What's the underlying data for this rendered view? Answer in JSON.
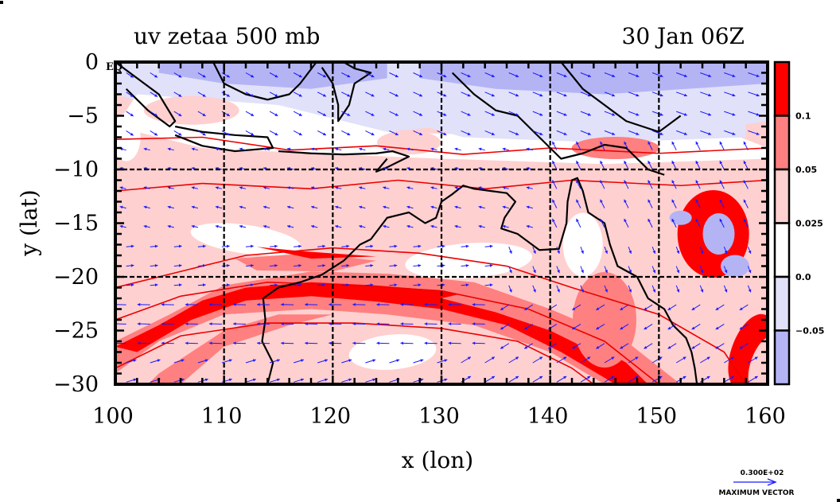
{
  "chart_data": {
    "type": "heatmap",
    "title_left": "uv zetaa 500 mb",
    "title_right": "30 Jan 06Z",
    "xlabel": "x (lon)",
    "ylabel": "y (lat)",
    "xlim": [
      100,
      160
    ],
    "ylim": [
      -30,
      0
    ],
    "x_ticks": [
      100,
      110,
      120,
      130,
      140,
      150,
      160
    ],
    "x_tick_labels": [
      "100",
      "110",
      "120",
      "130",
      "140",
      "150",
      "160"
    ],
    "y_ticks": [
      0,
      -5,
      -10,
      -15,
      -20,
      -25,
      -30
    ],
    "y_tick_labels": [
      "0",
      "−5",
      "−10",
      "−15",
      "−20",
      "−25",
      "−30"
    ],
    "eq_label": "EQ",
    "grid": true,
    "grid_x": [
      110,
      120,
      130,
      140,
      150
    ],
    "grid_y": [
      -10,
      -20
    ],
    "colorbar": {
      "position": "right",
      "levels": [
        -0.05,
        0.0,
        0.025,
        0.05,
        0.1
      ],
      "level_labels": [
        "0.1",
        "0.05",
        "0.025",
        "0.0",
        "−0.05"
      ],
      "colors": [
        "#b4b4f5",
        "#e1e1fa",
        "#ffffff",
        "#ffd0d0",
        "#ff8080",
        "#ff0000"
      ]
    },
    "vector_legend": {
      "value_label": "0.300E+02",
      "caption": "MAXIMUM VECTOR"
    },
    "colors": {
      "vector": "#1a1aff",
      "contour": "#ee0000",
      "coast": "#000000",
      "frame": "#000000"
    }
  }
}
